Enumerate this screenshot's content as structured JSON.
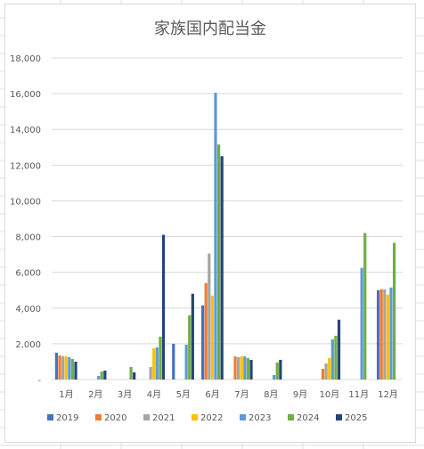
{
  "chart_data": {
    "type": "bar",
    "title": "家族国内配当金",
    "categories": [
      "1月",
      "2月",
      "3月",
      "4月",
      "5月",
      "6月",
      "7月",
      "8月",
      "9月",
      "10月",
      "11月",
      "12月"
    ],
    "ylim": [
      0,
      18000
    ],
    "yticks": [
      0,
      2000,
      4000,
      6000,
      8000,
      10000,
      12000,
      14000,
      16000,
      18000
    ],
    "ytick_labels": [
      "-",
      "2,000",
      "4,000",
      "6,000",
      "8,000",
      "10,000",
      "12,000",
      "14,000",
      "16,000",
      "18,000"
    ],
    "grid": true,
    "legend_position": "bottom",
    "series": [
      {
        "name": "2019",
        "color": "#4472c4",
        "values": [
          1500,
          0,
          0,
          0,
          2000,
          4150,
          0,
          0,
          0,
          0,
          0,
          5000
        ]
      },
      {
        "name": "2020",
        "color": "#ed7d31",
        "values": [
          1350,
          0,
          0,
          0,
          0,
          5400,
          1300,
          0,
          0,
          600,
          0,
          5050
        ]
      },
      {
        "name": "2021",
        "color": "#a5a5a5",
        "values": [
          1300,
          0,
          0,
          700,
          0,
          7050,
          1250,
          0,
          0,
          900,
          0,
          5050
        ]
      },
      {
        "name": "2022",
        "color": "#ffc000",
        "values": [
          1300,
          0,
          0,
          1750,
          0,
          4700,
          1300,
          0,
          0,
          1200,
          0,
          4750
        ]
      },
      {
        "name": "2023",
        "color": "#5b9bd5",
        "values": [
          1250,
          200,
          0,
          1800,
          1950,
          16050,
          1300,
          250,
          0,
          2250,
          6250,
          5150
        ]
      },
      {
        "name": "2024",
        "color": "#70ad47",
        "values": [
          1150,
          450,
          700,
          2400,
          3600,
          13150,
          1200,
          950,
          0,
          2450,
          8200,
          7650
        ]
      },
      {
        "name": "2025",
        "color": "#264478",
        "values": [
          1000,
          500,
          400,
          8100,
          4800,
          12500,
          1100,
          1100,
          0,
          3350,
          0,
          0
        ]
      }
    ]
  }
}
